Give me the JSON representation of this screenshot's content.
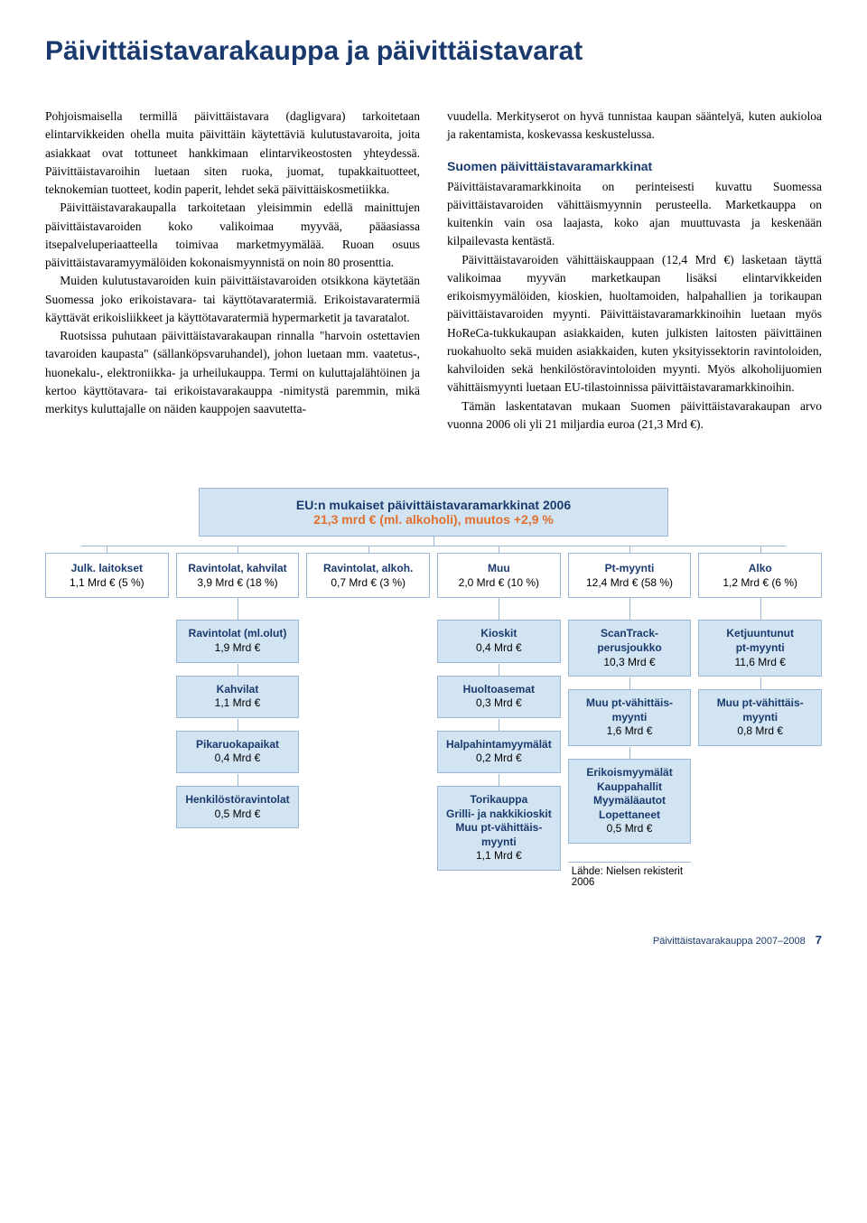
{
  "title": "Päivittäistavarakauppa ja päivittäistavarat",
  "col1": {
    "p1": "Pohjoismaisella termillä päivittäistavara (dagligvara) tarkoitetaan elintarvikkeiden ohella muita päivittäin käytettäviä kulutustavaroita, joita asiakkaat ovat tottuneet hankkimaan elintarvikeostosten yhteydessä. Päivittäistavaroihin luetaan siten ruoka, juomat, tupakkaituotteet, teknokemian tuotteet, kodin paperit, lehdet sekä päivittäiskosmetiikka.",
    "p2": "Päivittäistavarakaupalla tarkoitetaan yleisimmin edellä mainittujen päivittäistavaroiden koko valikoimaa myyvää, pääasiassa itsepalveluperiaatteella toimivaa marketmyymälää. Ruoan osuus päivittäistavaramyymälöiden kokonaismyynnistä on noin 80 prosenttia.",
    "p3": "Muiden kulutustavaroiden kuin päivittäistavaroiden otsikkona käytetään Suomessa joko erikoistavara- tai käyttötavaratermiä. Erikoistavaratermiä käyttävät erikoisliikkeet ja käyttötavaratermiä hypermarketit ja tavaratalot.",
    "p4": "Ruotsissa puhutaan päivittäistavarakaupan rinnalla \"harvoin ostettavien tavaroiden kaupasta\" (sällanköpsvaruhandel), johon luetaan mm. vaatetus-, huonekalu-, elektroniikka- ja urheilukauppa. Termi on kuluttajalähtöinen ja kertoo käyttötavara- tai erikoistavarakauppa -nimitystä paremmin, mikä merkitys kuluttajalle on näiden kauppojen saavutetta-"
  },
  "col2": {
    "p1": "vuudella. Merkityserot on hyvä tunnistaa kaupan sääntelyä, kuten aukioloa ja rakentamista, koskevassa keskustelussa.",
    "h1": "Suomen päivittäistavaramarkkinat",
    "p2": "Päivittäistavaramarkkinoita on perinteisesti kuvattu Suomessa päivittäistavaroiden vähittäismyynnin perusteella. Marketkauppa on kuitenkin vain osa laajasta, koko ajan muuttuvasta ja keskenään kilpailevasta kentästä.",
    "p3": "Päivittäistavaroiden vähittäiskauppaan (12,4 Mrd €) lasketaan täyttä valikoimaa myyvän marketkaupan lisäksi elintarvikkeiden erikoismyymälöiden, kioskien, huoltamoiden, halpahallien ja torikaupan päivittäistavaroiden myynti. Päivittäistavaramarkkinoihin luetaan myös HoReCa-tukkukaupan asiakkaiden, kuten julkisten laitosten päivittäinen ruokahuolto sekä muiden asiakkaiden, kuten yksityissektorin ravintoloiden, kahviloiden sekä henkilöstöravintoloiden myynti. Myös alkoholijuomien vähittäismyynti luetaan EU-tilastoinnissa päivittäistavaramarkkinoihin.",
    "p4": "Tämän laskentatavan mukaan Suomen päivittäistavarakaupan arvo vuonna 2006 oli yli 21 miljardia euroa (21,3 Mrd €)."
  },
  "diagram": {
    "top_line1": "EU:n mukaiset päivittäistavaramarkkinat 2006",
    "top_line2": "21,3 mrd € (ml. alkoholi), muutos +2,9 %",
    "row1": [
      {
        "head": "Julk. laitokset",
        "val": "1,1 Mrd € (5 %)"
      },
      {
        "head": "Ravintolat, kahvilat",
        "val": "3,9 Mrd € (18 %)"
      },
      {
        "head": "Ravintolat, alkoh.",
        "val": "0,7 Mrd € (3 %)"
      },
      {
        "head": "Muu",
        "val": "2,0 Mrd € (10 %)"
      },
      {
        "head": "Pt-myynti",
        "val": "12,4 Mrd € (58 %)"
      },
      {
        "head": "Alko",
        "val": "1,2 Mrd € (6 %)"
      }
    ],
    "groups": [
      [
        {
          "h": "Ravintolat (ml.olut)",
          "v": "1,9 Mrd €"
        },
        {
          "h": "Kahvilat",
          "v": "1,1 Mrd €"
        },
        {
          "h": "Pikaruokapaikat",
          "v": "0,4 Mrd €"
        },
        {
          "h": "Henkilöstöravintolat",
          "v": "0,5 Mrd €"
        }
      ],
      [
        {
          "h": "Kioskit",
          "v": "0,4 Mrd €"
        },
        {
          "h": "Huoltoasemat",
          "v": "0,3 Mrd €"
        },
        {
          "h": "Halpahintamyymälät",
          "v": "0,2 Mrd €"
        },
        {
          "h": "Torikauppa\nGrilli- ja nakkikioskit\nMuu pt-vähittäis-\nmyynti",
          "v": "1,1 Mrd €"
        }
      ],
      [
        {
          "h": "ScanTrack-\nperusjoukko",
          "v": "10,3 Mrd €"
        },
        {
          "h": "Muu pt-vähittäis-\nmyynti",
          "v": "1,6 Mrd €"
        },
        {
          "h": "Erikoismyymälät\nKauppahallit\nMyymäläautot\nLopettaneet",
          "v": "0,5 Mrd €"
        }
      ],
      [
        {
          "h": "Ketjuuntunut\npt-myynti",
          "v": "11,6 Mrd €"
        },
        {
          "h": "Muu pt-vähittäis-\nmyynti",
          "v": "0,8 Mrd €"
        }
      ]
    ],
    "source": "Lähde: Nielsen rekisterit 2006"
  },
  "footer": {
    "text": "Päivittäistavarakauppa 2007–2008",
    "page": "7"
  },
  "colors": {
    "heading": "#1a3a6e",
    "box_bg": "#d2e4f2",
    "box_border": "#9ab8d6",
    "accent": "#e07030"
  }
}
